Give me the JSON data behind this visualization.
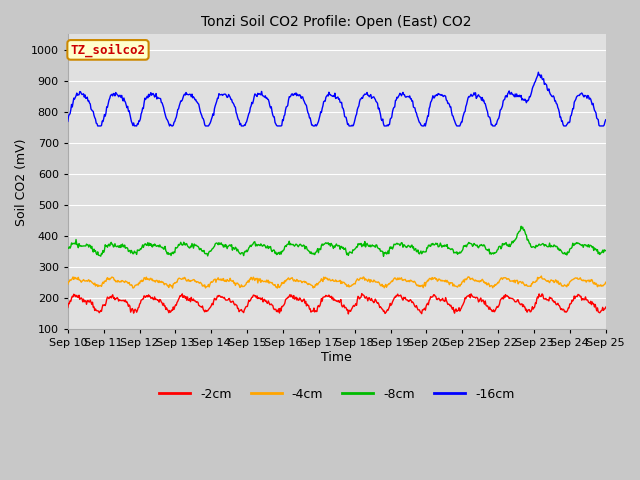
{
  "title": "Tonzi Soil CO2 Profile: Open (East) CO2",
  "xlabel": "Time",
  "ylabel": "Soil CO2 (mV)",
  "ylim": [
    100,
    1050
  ],
  "yticks": [
    100,
    200,
    300,
    400,
    500,
    600,
    700,
    800,
    900,
    1000
  ],
  "xtick_labels": [
    "Sep 10",
    "Sep 11",
    "Sep 12",
    "Sep 13",
    "Sep 14",
    "Sep 15",
    "Sep 16",
    "Sep 17",
    "Sep 18",
    "Sep 19",
    "Sep 20",
    "Sep 21",
    "Sep 22",
    "Sep 23",
    "Sep 24",
    "Sep 25"
  ],
  "series_colors": {
    "-2cm": "#ff0000",
    "-4cm": "#ffa500",
    "-8cm": "#00bb00",
    "-16cm": "#0000ff"
  },
  "legend_labels": [
    "-2cm",
    "-4cm",
    "-8cm",
    "-16cm"
  ],
  "fig_bg_color": "#c8c8c8",
  "plot_bg_color": "#e0e0e0",
  "annotation_text": "TZ_soilco2",
  "annotation_bg": "#ffffcc",
  "annotation_border": "#cc8800",
  "title_fontsize": 10,
  "axis_label_fontsize": 9,
  "tick_fontsize": 8,
  "annotation_fontsize": 9,
  "legend_fontsize": 9,
  "linewidth": 1.0
}
